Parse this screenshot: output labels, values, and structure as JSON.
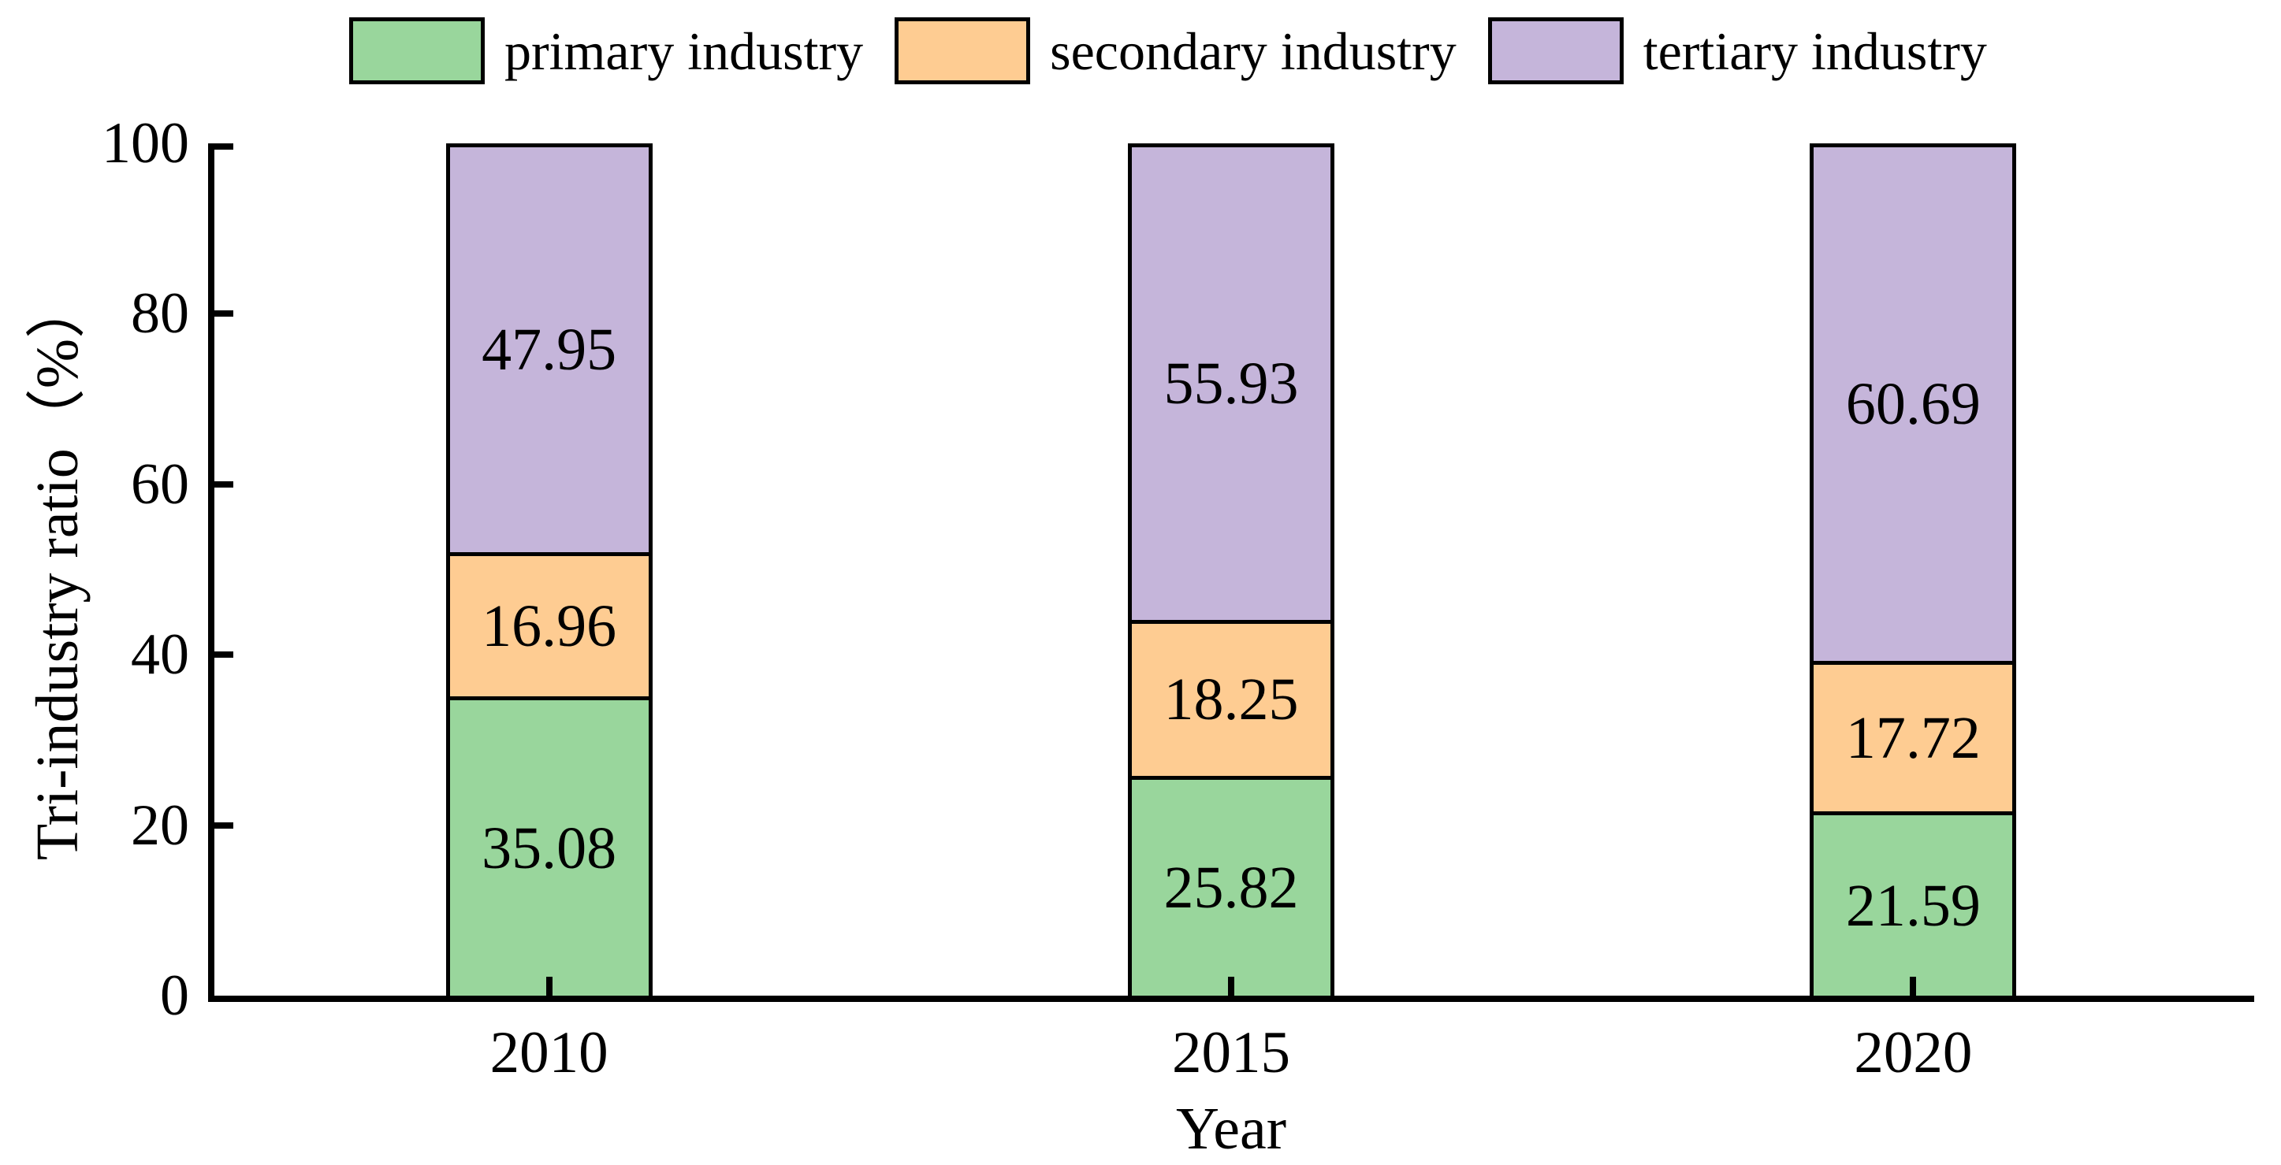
{
  "chart_data": {
    "type": "bar",
    "stacked": true,
    "title": "",
    "xlabel": "Year",
    "ylabel": "Tri-industry ratio（%）",
    "categories": [
      "2010",
      "2015",
      "2020"
    ],
    "series": [
      {
        "name": "primary industry",
        "color": "#99D69C",
        "values": [
          35.08,
          25.82,
          21.59
        ]
      },
      {
        "name": "secondary industry",
        "color": "#FECC92",
        "values": [
          16.96,
          18.25,
          17.72
        ]
      },
      {
        "name": "tertiary industry",
        "color": "#C5B5DA",
        "values": [
          47.95,
          55.93,
          60.69
        ]
      }
    ],
    "ylim": [
      0,
      100
    ],
    "yticks": [
      0,
      20,
      40,
      60,
      80,
      100
    ],
    "bar_value_labels": true,
    "value_label_decimals": 2,
    "legend_position": "top",
    "grid": false,
    "axis_color": "#000000",
    "text_color": "#000000",
    "background_color": "#FFFFFF"
  }
}
